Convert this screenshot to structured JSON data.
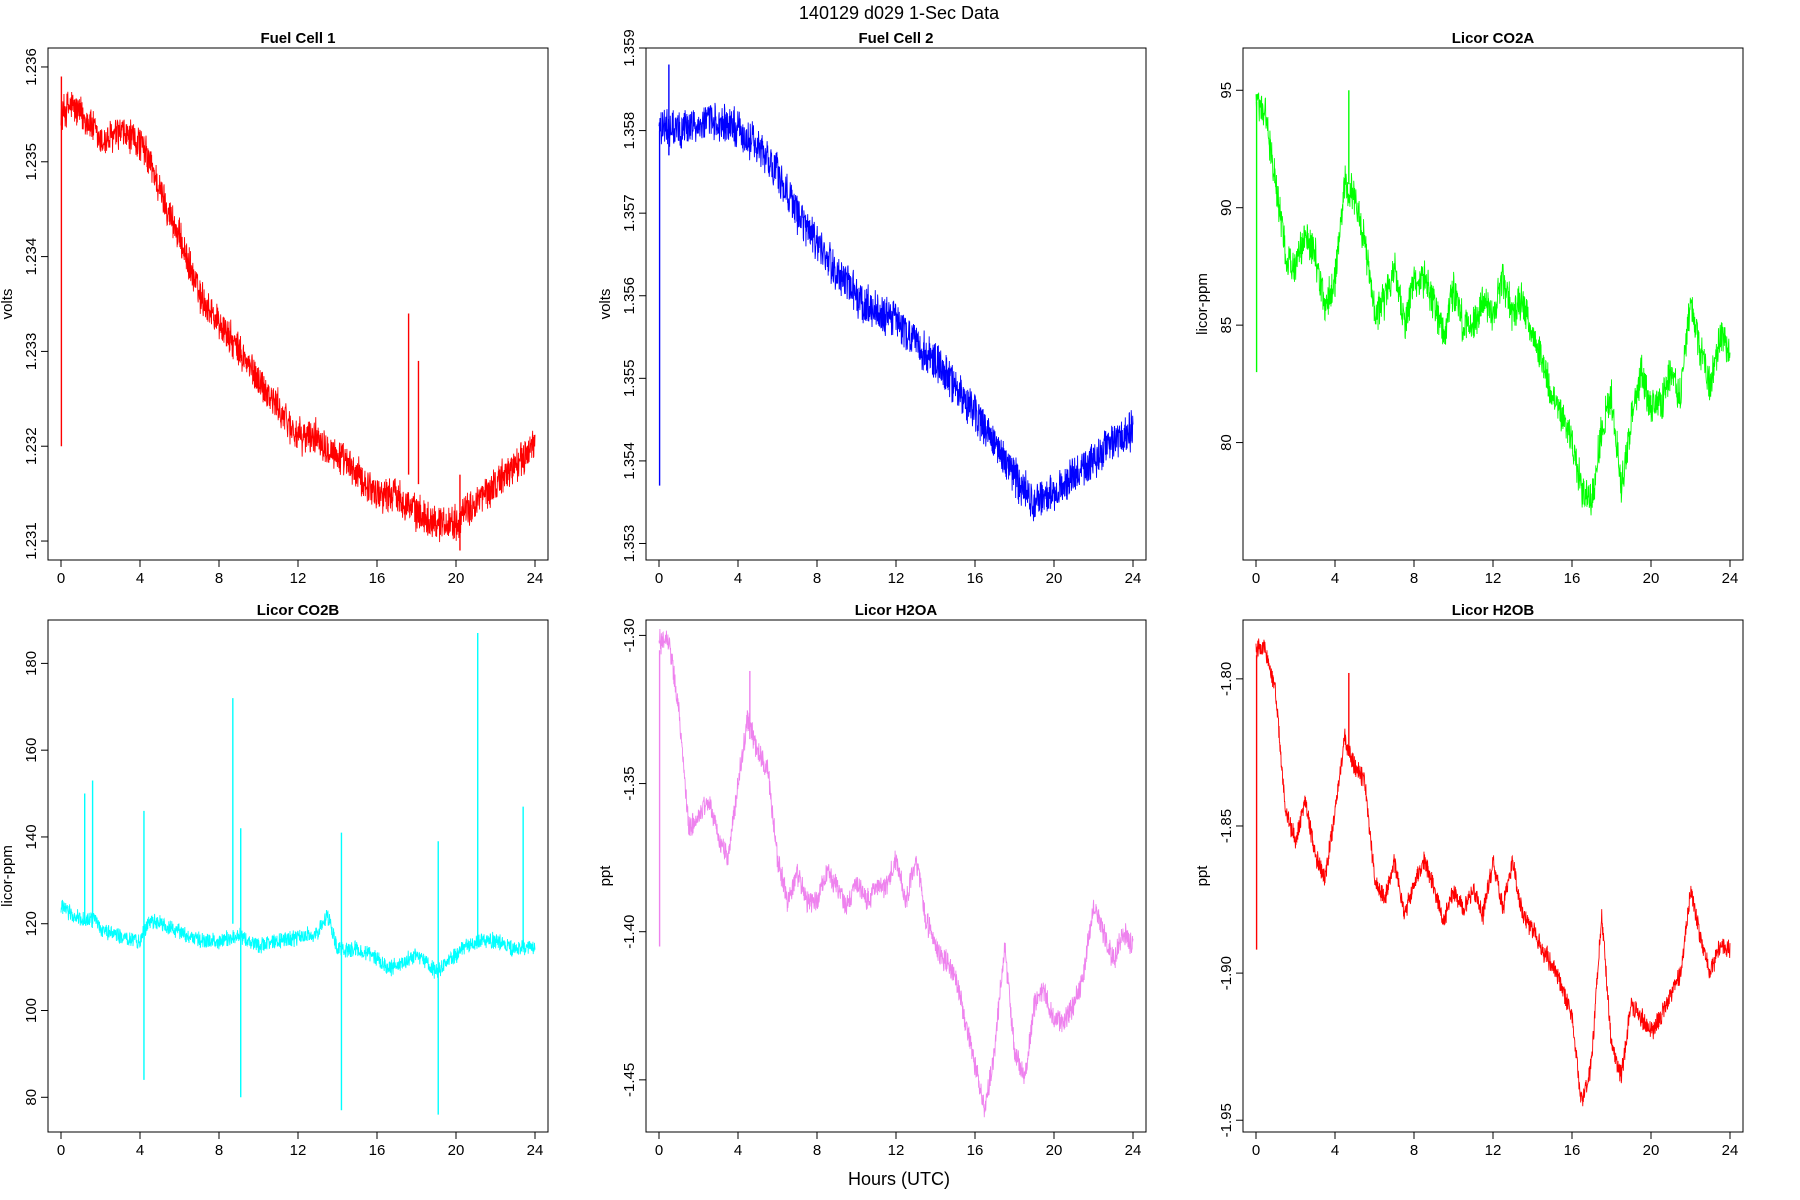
{
  "suptitle": "140129   d029   1-Sec Data",
  "xlabel": "Hours (UTC)",
  "chart_data": [
    {
      "type": "line",
      "title": "Fuel Cell 1",
      "ylabel": "volts",
      "color": "#ff0000",
      "xlim": [
        0,
        24
      ],
      "ylim": [
        1.2308,
        1.2362
      ],
      "xticks": [
        0,
        4,
        8,
        12,
        16,
        20,
        24
      ],
      "yticks": [
        1.231,
        1.232,
        1.233,
        1.234,
        1.235,
        1.236
      ],
      "ytick_labels": [
        "1.231",
        "1.232",
        "1.233",
        "1.234",
        "1.235",
        "1.236"
      ],
      "noise": 0.00022,
      "x": [
        0,
        0.5,
        1,
        1.5,
        2,
        3,
        4,
        4.5,
        5,
        6,
        7,
        8,
        9,
        10,
        11,
        12,
        13,
        14,
        15,
        16,
        17,
        18,
        19,
        20,
        21,
        22,
        23,
        24
      ],
      "y": [
        1.2355,
        1.2356,
        1.2355,
        1.2354,
        1.2352,
        1.2353,
        1.2352,
        1.235,
        1.2347,
        1.2342,
        1.2336,
        1.2333,
        1.233,
        1.2327,
        1.2324,
        1.2321,
        1.2321,
        1.2319,
        1.2317,
        1.2315,
        1.2315,
        1.2313,
        1.2312,
        1.2312,
        1.2314,
        1.2316,
        1.2318,
        1.232
      ],
      "spikes": [
        {
          "x": 0.02,
          "from": 1.232,
          "to": 1.2359
        },
        {
          "x": 17.6,
          "from": 1.2317,
          "to": 1.2334
        },
        {
          "x": 18.1,
          "from": 1.2316,
          "to": 1.2329
        },
        {
          "x": 20.2,
          "from": 1.2309,
          "to": 1.2317
        }
      ]
    },
    {
      "type": "line",
      "title": "Fuel Cell 2",
      "ylabel": "volts",
      "color": "#0000ff",
      "xlim": [
        0,
        24
      ],
      "ylim": [
        1.3528,
        1.359
      ],
      "xticks": [
        0,
        4,
        8,
        12,
        16,
        20,
        24
      ],
      "yticks": [
        1.353,
        1.354,
        1.355,
        1.356,
        1.357,
        1.358,
        1.359
      ],
      "ytick_labels": [
        "1.353",
        "1.354",
        "1.355",
        "1.356",
        "1.357",
        "1.358",
        "1.359"
      ],
      "noise": 0.00028,
      "x": [
        0,
        0.5,
        1,
        2,
        3,
        4,
        5,
        6,
        7,
        8,
        9,
        10,
        11,
        12,
        13,
        14,
        15,
        16,
        17,
        18,
        19,
        20,
        21,
        22,
        23,
        24
      ],
      "y": [
        1.3581,
        1.358,
        1.358,
        1.3581,
        1.3581,
        1.358,
        1.3578,
        1.3575,
        1.357,
        1.3566,
        1.3563,
        1.356,
        1.3558,
        1.3557,
        1.3554,
        1.3552,
        1.3549,
        1.3546,
        1.3542,
        1.3538,
        1.3535,
        1.3536,
        1.3538,
        1.354,
        1.3542,
        1.3544
      ],
      "spikes": [
        {
          "x": 0.03,
          "from": 1.3537,
          "to": 1.358
        },
        {
          "x": 0.5,
          "from": 1.3577,
          "to": 1.3588
        }
      ]
    },
    {
      "type": "line",
      "title": "Licor CO2A",
      "ylabel": "licor-ppm",
      "color": "#00ff00",
      "xlim": [
        0,
        24
      ],
      "ylim": [
        75.0,
        96.8
      ],
      "xticks": [
        0,
        4,
        8,
        12,
        16,
        20,
        24
      ],
      "yticks": [
        80,
        85,
        90,
        95
      ],
      "ytick_labels": [
        "80",
        "85",
        "90",
        "95"
      ],
      "noise": 0.9,
      "x": [
        0,
        0.5,
        1,
        1.5,
        2,
        2.5,
        3,
        3.5,
        4,
        4.5,
        5,
        5.5,
        6,
        6.5,
        7,
        7.5,
        8,
        8.5,
        9,
        9.5,
        10,
        10.5,
        11,
        11.5,
        12,
        12.5,
        13,
        13.5,
        14,
        14.5,
        15,
        15.5,
        16,
        16.5,
        17,
        17.5,
        18,
        18.5,
        19,
        19.5,
        20,
        20.5,
        21,
        21.5,
        22,
        22.5,
        23,
        23.5,
        24
      ],
      "y": [
        94.5,
        94.0,
        91.0,
        88.0,
        87.5,
        88.8,
        88.0,
        85.8,
        87.0,
        91.0,
        90.5,
        88.5,
        85.5,
        86.0,
        87.5,
        85.0,
        86.8,
        87.0,
        86.0,
        84.5,
        86.5,
        85.0,
        85.0,
        86.0,
        85.5,
        87.0,
        85.5,
        86.0,
        84.5,
        83.5,
        82.0,
        81.0,
        80.0,
        78.0,
        77.5,
        80.5,
        82.0,
        78.0,
        81.0,
        83.0,
        81.5,
        81.5,
        83.0,
        82.0,
        86.0,
        84.0,
        82.5,
        84.5,
        84.0
      ],
      "spikes": [
        {
          "x": 0.03,
          "from": 83.0,
          "to": 94.5
        },
        {
          "x": 4.7,
          "from": 91.0,
          "to": 95.0
        }
      ]
    },
    {
      "type": "line",
      "title": "Licor CO2B",
      "ylabel": "licor-ppm",
      "color": "#00ffff",
      "xlim": [
        0,
        24
      ],
      "ylim": [
        72,
        190
      ],
      "xticks": [
        0,
        4,
        8,
        12,
        16,
        20,
        24
      ],
      "yticks": [
        80,
        100,
        120,
        140,
        160,
        180
      ],
      "ytick_labels": [
        "80",
        "100",
        "120",
        "140",
        "160",
        "180"
      ],
      "noise": 2.2,
      "x": [
        0,
        0.3,
        1,
        1.7,
        2,
        3,
        4,
        4.5,
        5,
        6,
        7,
        8,
        9,
        10,
        11,
        12,
        13,
        13.5,
        14,
        15,
        16,
        16.5,
        17,
        18,
        19,
        20,
        21,
        22,
        23,
        24
      ],
      "y": [
        124,
        123,
        121,
        121,
        119,
        117,
        116,
        121,
        120,
        118,
        116,
        116,
        117,
        115,
        116,
        117,
        118,
        122,
        114,
        114,
        112,
        110,
        110,
        113,
        109,
        113,
        116,
        116,
        114,
        115
      ],
      "spikes": [
        {
          "x": 1.2,
          "from": 120,
          "to": 150
        },
        {
          "x": 1.6,
          "from": 120,
          "to": 153
        },
        {
          "x": 4.2,
          "from": 84,
          "to": 146
        },
        {
          "x": 8.7,
          "from": 120,
          "to": 172
        },
        {
          "x": 9.1,
          "from": 80,
          "to": 142
        },
        {
          "x": 14.2,
          "from": 77,
          "to": 141
        },
        {
          "x": 19.1,
          "from": 76,
          "to": 139
        },
        {
          "x": 21.1,
          "from": 115,
          "to": 187
        },
        {
          "x": 23.4,
          "from": 115,
          "to": 147
        }
      ]
    },
    {
      "type": "line",
      "title": "Licor H2OA",
      "ylabel": "ppt",
      "color": "#ee82ee",
      "xlim": [
        0,
        24
      ],
      "ylim": [
        -1.4676,
        -1.2948
      ],
      "xticks": [
        0,
        4,
        8,
        12,
        16,
        20,
        24
      ],
      "yticks": [
        -1.45,
        -1.4,
        -1.35,
        -1.3
      ],
      "ytick_labels": [
        "-1.45",
        "-1.40",
        "-1.35",
        "-1.30"
      ],
      "noise": 0.0045,
      "x": [
        0,
        0.5,
        1,
        1.5,
        2,
        2.5,
        3,
        3.5,
        4,
        4.5,
        5,
        5.5,
        6,
        6.5,
        7,
        7.5,
        8,
        8.5,
        9,
        9.5,
        10,
        10.5,
        11,
        11.5,
        12,
        12.5,
        13,
        13.5,
        14,
        14.5,
        15,
        15.5,
        16,
        16.5,
        17,
        17.5,
        18,
        18.5,
        19,
        19.5,
        20,
        20.5,
        21,
        21.5,
        22,
        22.5,
        23,
        23.5,
        24
      ],
      "y": [
        -1.302,
        -1.302,
        -1.325,
        -1.365,
        -1.362,
        -1.355,
        -1.368,
        -1.375,
        -1.35,
        -1.328,
        -1.34,
        -1.345,
        -1.375,
        -1.39,
        -1.38,
        -1.39,
        -1.39,
        -1.38,
        -1.385,
        -1.392,
        -1.383,
        -1.39,
        -1.385,
        -1.385,
        -1.375,
        -1.39,
        -1.375,
        -1.395,
        -1.405,
        -1.41,
        -1.415,
        -1.43,
        -1.445,
        -1.46,
        -1.44,
        -1.405,
        -1.44,
        -1.45,
        -1.425,
        -1.42,
        -1.43,
        -1.43,
        -1.425,
        -1.415,
        -1.39,
        -1.4,
        -1.41,
        -1.4,
        -1.405
      ],
      "spikes": [
        {
          "x": 0.03,
          "from": -1.405,
          "to": -1.305
        },
        {
          "x": 4.6,
          "from": -1.335,
          "to": -1.312
        }
      ]
    },
    {
      "type": "line",
      "title": "Licor H2OB",
      "ylabel": "ppt",
      "color": "#ff0000",
      "xlim": [
        0,
        24
      ],
      "ylim": [
        -1.954,
        -1.78
      ],
      "xticks": [
        0,
        4,
        8,
        12,
        16,
        20,
        24
      ],
      "yticks": [
        -1.95,
        -1.9,
        -1.85,
        -1.8
      ],
      "ytick_labels": [
        "-1.95",
        "-1.90",
        "-1.85",
        "-1.80"
      ],
      "noise": 0.004,
      "x": [
        0,
        0.5,
        1,
        1.5,
        2,
        2.5,
        3,
        3.5,
        4,
        4.5,
        5,
        5.5,
        6,
        6.5,
        7,
        7.5,
        8,
        8.5,
        9,
        9.5,
        10,
        10.5,
        11,
        11.5,
        12,
        12.5,
        13,
        13.5,
        14,
        14.5,
        15,
        15.5,
        16,
        16.5,
        17,
        17.5,
        18,
        18.5,
        19,
        19.5,
        20,
        20.5,
        21,
        21.5,
        22,
        22.5,
        23,
        23.5,
        24
      ],
      "y": [
        -1.79,
        -1.79,
        -1.805,
        -1.845,
        -1.855,
        -1.842,
        -1.86,
        -1.868,
        -1.845,
        -1.82,
        -1.83,
        -1.835,
        -1.868,
        -1.875,
        -1.862,
        -1.88,
        -1.87,
        -1.862,
        -1.87,
        -1.882,
        -1.872,
        -1.878,
        -1.872,
        -1.88,
        -1.862,
        -1.878,
        -1.862,
        -1.88,
        -1.885,
        -1.892,
        -1.897,
        -1.905,
        -1.915,
        -1.945,
        -1.93,
        -1.88,
        -1.925,
        -1.935,
        -1.91,
        -1.915,
        -1.92,
        -1.915,
        -1.908,
        -1.9,
        -1.872,
        -1.888,
        -1.9,
        -1.89,
        -1.892
      ],
      "spikes": [
        {
          "x": 0.03,
          "from": -1.892,
          "to": -1.792
        },
        {
          "x": 4.7,
          "from": -1.825,
          "to": -1.798
        }
      ]
    }
  ]
}
